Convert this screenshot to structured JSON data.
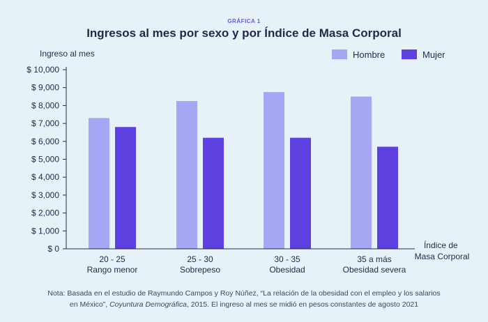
{
  "chart_data": {
    "type": "bar",
    "kicker": "GRÁFICA 1",
    "title": "Ingresos al mes por sexo y por Índice de Masa Corporal",
    "ylabel": "Ingreso al mes",
    "xlabel_lines": [
      "Índice de",
      "Masa Corporal"
    ],
    "categories": [
      [
        "20 - 25",
        "Rango menor"
      ],
      [
        "25 - 30",
        "Sobrepeso"
      ],
      [
        "30 - 35",
        "Obesidad"
      ],
      [
        "35 a más",
        "Obesidad severa"
      ]
    ],
    "series": [
      {
        "name": "Hombre",
        "color": "#a6a6f5",
        "values": [
          7300,
          8250,
          8750,
          8500
        ]
      },
      {
        "name": "Mujer",
        "color": "#5e3fe0",
        "values": [
          6800,
          6200,
          6200,
          5700
        ]
      }
    ],
    "ylim": [
      0,
      10000
    ],
    "yticks": [
      0,
      1000,
      2000,
      3000,
      4000,
      5000,
      6000,
      7000,
      8000,
      9000,
      10000
    ],
    "ytick_labels": [
      "$ 0",
      "$ 1,000",
      "$ 2,000",
      "$ 3,000",
      "$ 4,000",
      "$ 5,000",
      "$ 6,000",
      "$ 7,000",
      "$ 8,000",
      "$ 9,000",
      "$ 10,000"
    ],
    "legend_position": "top-right",
    "grid": false,
    "note_line1": "Nota: Basada en el estudio de Raymundo Campos y Roy Núñez, “La relación de la obesidad con el empleo y los salarios",
    "note_line2_start": "en México”, ",
    "note_line2_italic": "Coyuntura Demográfica",
    "note_line2_end": ", 2015. El ingreso al mes se midió en pesos constantes de agosto 2021"
  }
}
